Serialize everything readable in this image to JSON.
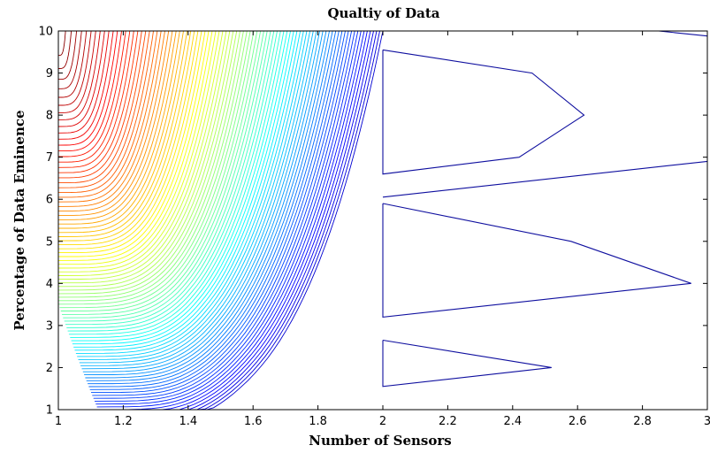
{
  "chart_data": {
    "type": "contour",
    "title": "Qualtiy of Data",
    "xlabel": "Number of Sensors",
    "ylabel": "Percentage of Data Eminence",
    "xlim": [
      1,
      3
    ],
    "ylim": [
      1,
      10
    ],
    "xticks": [
      1,
      1.2,
      1.4,
      1.6,
      1.8,
      2,
      2.2,
      2.4,
      2.6,
      2.8,
      3
    ],
    "xtick_labels": [
      "1",
      "1.2",
      "1.4",
      "1.6",
      "1.8",
      "2",
      "2.2",
      "2.4",
      "2.6",
      "2.8",
      "3"
    ],
    "yticks": [
      1,
      2,
      3,
      4,
      5,
      6,
      7,
      8,
      9,
      10
    ],
    "ytick_labels": [
      "1",
      "2",
      "3",
      "4",
      "5",
      "6",
      "7",
      "8",
      "9",
      "10"
    ],
    "colormap": "jet",
    "level_count": 90,
    "grid": false,
    "legend": "none",
    "colors": {
      "background": "#ffffff",
      "axes": "#000000",
      "low": "#00008f",
      "high": "#800000"
    },
    "closed_regions": [
      {
        "x": [
          2.0,
          2.46,
          2.62,
          2.42,
          2.0,
          2.0
        ],
        "y": [
          9.55,
          9.0,
          8.0,
          7.0,
          6.6,
          9.55
        ]
      },
      {
        "x": [
          2.0,
          2.58,
          2.95,
          2.0,
          2.0
        ],
        "y": [
          5.9,
          5.0,
          4.0,
          3.2,
          5.9
        ]
      },
      {
        "x": [
          2.0,
          2.52,
          2.0,
          2.0
        ],
        "y": [
          2.65,
          2.0,
          1.55,
          2.65
        ]
      }
    ],
    "open_lines": [
      {
        "x": [
          2.0,
          3.0
        ],
        "y": [
          6.05,
          6.9
        ]
      },
      {
        "x": [
          2.85,
          3.0
        ],
        "y": [
          10.0,
          9.88
        ]
      }
    ]
  }
}
